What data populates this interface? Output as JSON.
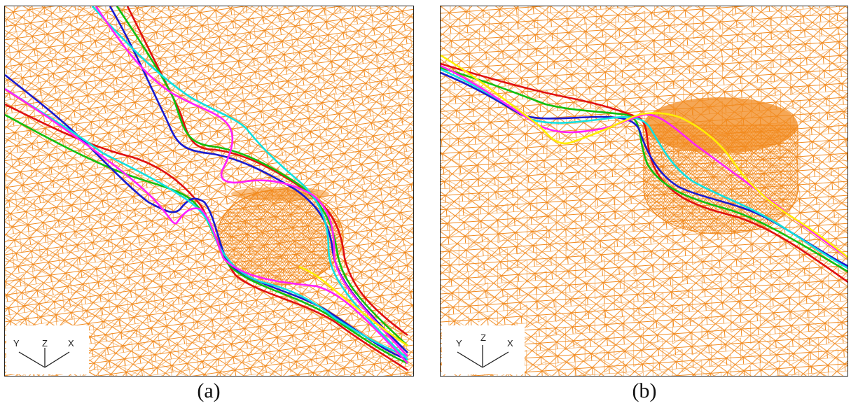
{
  "panels": [
    {
      "id": "a",
      "caption": "(a)",
      "axes": {
        "x": "X",
        "y": "Y",
        "z": "Z"
      }
    },
    {
      "id": "b",
      "caption": "(b)",
      "axes": {
        "x": "X",
        "y": "Y",
        "z": "Z"
      }
    }
  ],
  "colors": {
    "mesh": "#f28a1e",
    "streamlines": [
      "#e01010",
      "#10c010",
      "#1a1ad0",
      "#10e0e0",
      "#ff20ff",
      "#ffee00"
    ]
  }
}
